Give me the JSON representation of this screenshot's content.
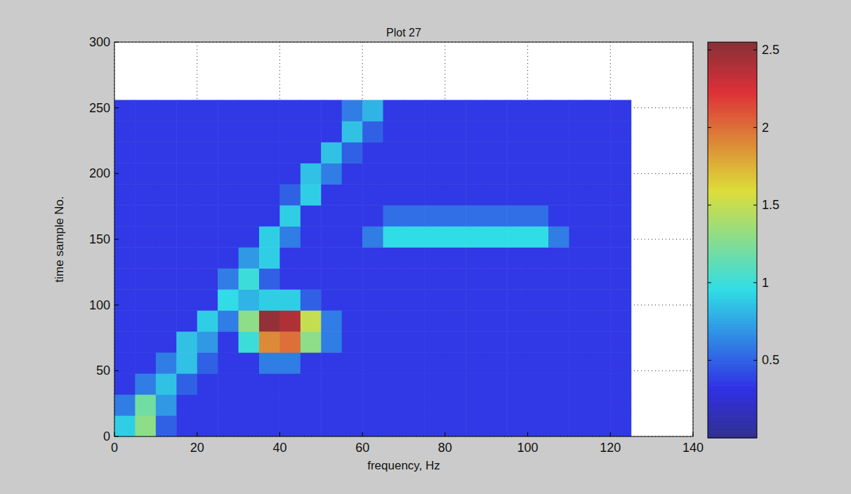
{
  "chart_data": {
    "type": "heatmap",
    "title": "Plot 27",
    "x_label": "frequency, Hz",
    "y_label": "time sample No.",
    "x_bins": [
      0,
      5,
      10,
      15,
      20,
      25,
      30,
      35,
      40,
      45,
      50,
      55,
      60,
      65,
      70,
      75,
      80,
      85,
      90,
      95,
      100,
      105,
      110,
      115,
      120,
      125
    ],
    "y_bins": [
      0,
      16,
      32,
      48,
      64,
      80,
      96,
      112,
      128,
      144,
      160,
      176,
      192,
      208,
      224,
      240,
      256
    ],
    "cells": [
      [
        0.9,
        1.3,
        0.5,
        0.35,
        0.35,
        0.35,
        0.35,
        0.35,
        0.35,
        0.35,
        0.35,
        0.35,
        0.35,
        0.35,
        0.35,
        0.35,
        0.35,
        0.35,
        0.35,
        0.35,
        0.35,
        0.35,
        0.35,
        0.35,
        0.35
      ],
      [
        0.6,
        1.2,
        0.7,
        0.35,
        0.35,
        0.35,
        0.35,
        0.35,
        0.35,
        0.35,
        0.35,
        0.35,
        0.35,
        0.35,
        0.35,
        0.35,
        0.35,
        0.35,
        0.35,
        0.35,
        0.35,
        0.35,
        0.35,
        0.35,
        0.35
      ],
      [
        0.35,
        0.6,
        0.85,
        0.5,
        0.35,
        0.35,
        0.35,
        0.35,
        0.35,
        0.35,
        0.35,
        0.35,
        0.35,
        0.35,
        0.35,
        0.35,
        0.35,
        0.35,
        0.35,
        0.35,
        0.35,
        0.35,
        0.35,
        0.35,
        0.35
      ],
      [
        0.35,
        0.35,
        0.6,
        0.85,
        0.5,
        0.35,
        0.35,
        0.6,
        0.6,
        0.35,
        0.35,
        0.35,
        0.35,
        0.35,
        0.35,
        0.35,
        0.35,
        0.35,
        0.35,
        0.35,
        0.35,
        0.35,
        0.35,
        0.35,
        0.35
      ],
      [
        0.35,
        0.35,
        0.35,
        0.85,
        0.7,
        0.35,
        1.0,
        1.9,
        2.0,
        1.3,
        0.6,
        0.35,
        0.35,
        0.35,
        0.35,
        0.35,
        0.35,
        0.35,
        0.35,
        0.35,
        0.35,
        0.35,
        0.35,
        0.35,
        0.35
      ],
      [
        0.35,
        0.35,
        0.35,
        0.35,
        0.9,
        0.6,
        1.3,
        2.5,
        2.4,
        1.5,
        0.6,
        0.35,
        0.35,
        0.35,
        0.35,
        0.35,
        0.35,
        0.35,
        0.35,
        0.35,
        0.35,
        0.35,
        0.35,
        0.35,
        0.35
      ],
      [
        0.35,
        0.35,
        0.35,
        0.35,
        0.35,
        0.95,
        0.8,
        0.9,
        0.9,
        0.5,
        0.35,
        0.35,
        0.35,
        0.35,
        0.35,
        0.35,
        0.35,
        0.35,
        0.35,
        0.35,
        0.35,
        0.35,
        0.35,
        0.35,
        0.35
      ],
      [
        0.35,
        0.35,
        0.35,
        0.35,
        0.35,
        0.6,
        1.0,
        0.5,
        0.35,
        0.35,
        0.35,
        0.35,
        0.35,
        0.35,
        0.35,
        0.35,
        0.35,
        0.35,
        0.35,
        0.35,
        0.35,
        0.35,
        0.35,
        0.35,
        0.35
      ],
      [
        0.35,
        0.35,
        0.35,
        0.35,
        0.35,
        0.35,
        0.7,
        0.9,
        0.35,
        0.35,
        0.35,
        0.35,
        0.35,
        0.35,
        0.35,
        0.35,
        0.35,
        0.35,
        0.35,
        0.35,
        0.35,
        0.35,
        0.35,
        0.35,
        0.35
      ],
      [
        0.35,
        0.35,
        0.35,
        0.35,
        0.35,
        0.35,
        0.35,
        0.9,
        0.6,
        0.35,
        0.35,
        0.35,
        0.6,
        0.95,
        0.95,
        0.95,
        0.95,
        0.95,
        0.95,
        0.95,
        0.95,
        0.6,
        0.35,
        0.35,
        0.35
      ],
      [
        0.35,
        0.35,
        0.35,
        0.35,
        0.35,
        0.35,
        0.35,
        0.35,
        0.9,
        0.35,
        0.35,
        0.35,
        0.35,
        0.55,
        0.55,
        0.55,
        0.55,
        0.55,
        0.55,
        0.55,
        0.55,
        0.35,
        0.35,
        0.35,
        0.35
      ],
      [
        0.35,
        0.35,
        0.35,
        0.35,
        0.35,
        0.35,
        0.35,
        0.35,
        0.5,
        0.9,
        0.35,
        0.35,
        0.35,
        0.35,
        0.35,
        0.35,
        0.35,
        0.35,
        0.35,
        0.35,
        0.35,
        0.35,
        0.35,
        0.35,
        0.35
      ],
      [
        0.35,
        0.35,
        0.35,
        0.35,
        0.35,
        0.35,
        0.35,
        0.35,
        0.35,
        0.85,
        0.6,
        0.35,
        0.35,
        0.35,
        0.35,
        0.35,
        0.35,
        0.35,
        0.35,
        0.35,
        0.35,
        0.35,
        0.35,
        0.35,
        0.35
      ],
      [
        0.35,
        0.35,
        0.35,
        0.35,
        0.35,
        0.35,
        0.35,
        0.35,
        0.35,
        0.35,
        0.85,
        0.5,
        0.35,
        0.35,
        0.35,
        0.35,
        0.35,
        0.35,
        0.35,
        0.35,
        0.35,
        0.35,
        0.35,
        0.35,
        0.35
      ],
      [
        0.35,
        0.35,
        0.35,
        0.35,
        0.35,
        0.35,
        0.35,
        0.35,
        0.35,
        0.35,
        0.35,
        0.85,
        0.5,
        0.35,
        0.35,
        0.35,
        0.35,
        0.35,
        0.35,
        0.35,
        0.35,
        0.35,
        0.35,
        0.35,
        0.35
      ],
      [
        0.35,
        0.35,
        0.35,
        0.35,
        0.35,
        0.35,
        0.35,
        0.35,
        0.35,
        0.35,
        0.35,
        0.6,
        0.8,
        0.35,
        0.35,
        0.35,
        0.35,
        0.35,
        0.35,
        0.35,
        0.35,
        0.35,
        0.35,
        0.35,
        0.35
      ]
    ],
    "xlim": [
      0,
      140
    ],
    "ylim": [
      0,
      300
    ],
    "xticks": [
      0,
      20,
      40,
      60,
      80,
      100,
      120,
      140
    ],
    "yticks": [
      0,
      50,
      100,
      150,
      200,
      250,
      300
    ],
    "grid": true,
    "colorbar": {
      "range": [
        0,
        2.55
      ],
      "ticks": [
        0.5,
        1,
        1.5,
        2,
        2.5
      ]
    }
  }
}
